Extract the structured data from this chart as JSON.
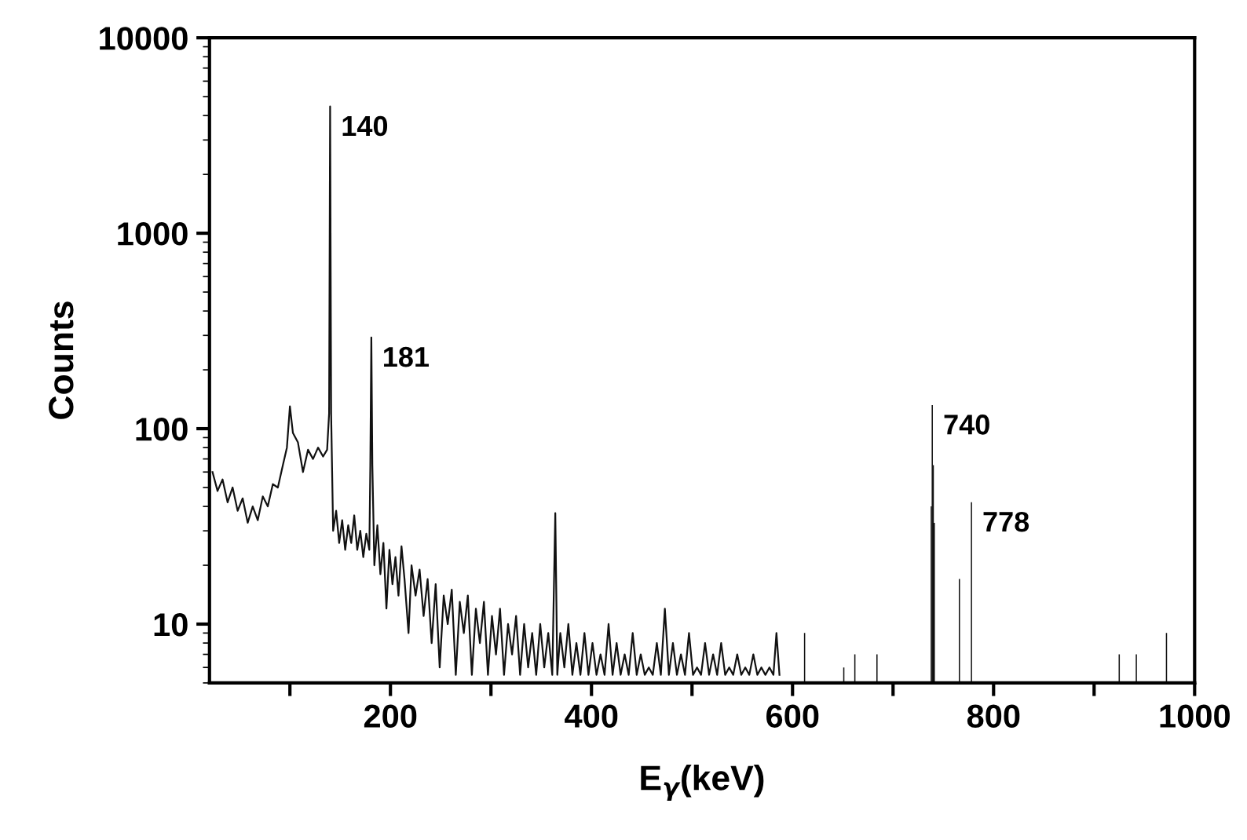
{
  "chart_data": {
    "type": "line",
    "xlabel": "E$_{γ}$(keV)",
    "ylabel": "Counts",
    "log": "y",
    "grid": false,
    "marker": "none",
    "line_style": "solid",
    "xlim": [
      20,
      1000
    ],
    "ylim": [
      5,
      10000
    ],
    "xticks": [
      {
        "value": 100,
        "label": null
      },
      200,
      {
        "value": 300,
        "label": null
      },
      400,
      {
        "value": 500,
        "label": null
      },
      600,
      {
        "value": 700,
        "label": null
      },
      800,
      {
        "value": 900,
        "label": null
      },
      1000
    ],
    "yticks": [
      10,
      100,
      1000,
      10000
    ],
    "series": [
      {
        "color": "#111111",
        "x": [
          23,
          28,
          33,
          38,
          43,
          48,
          53,
          58,
          63,
          68,
          73,
          78,
          83,
          88,
          93,
          97,
          100,
          103,
          108,
          113,
          118,
          123,
          128,
          133,
          137,
          139,
          140,
          141,
          143,
          146,
          149,
          152,
          155,
          158,
          161,
          164,
          167,
          170,
          173,
          176,
          179,
          180,
          181,
          182,
          184,
          187,
          190,
          193,
          196,
          199,
          202,
          205,
          208,
          211,
          214,
          218,
          221,
          225,
          229,
          233,
          237,
          241,
          245,
          249,
          253,
          257,
          261,
          265,
          269,
          273,
          277,
          281,
          285,
          289,
          293,
          297,
          301,
          305,
          309,
          313,
          317,
          321,
          325,
          329,
          333,
          337,
          341,
          345,
          349,
          353,
          357,
          361,
          364,
          366,
          369,
          373,
          377,
          381,
          385,
          389,
          393,
          397,
          401,
          405,
          409,
          413,
          417,
          421,
          425,
          429,
          433,
          437,
          441,
          445,
          449,
          453,
          457,
          461,
          465,
          469,
          473,
          477,
          481,
          485,
          489,
          493,
          497,
          501,
          505,
          509,
          513,
          517,
          521,
          525,
          529,
          533,
          537,
          541,
          545,
          549,
          553,
          557,
          561,
          565,
          569,
          573,
          577,
          581,
          584,
          587
        ],
        "values": [
          60,
          48,
          55,
          42,
          50,
          38,
          44,
          33,
          40,
          34,
          45,
          40,
          52,
          50,
          65,
          80,
          130,
          95,
          85,
          60,
          78,
          70,
          80,
          72,
          78,
          120,
          4450,
          120,
          30,
          38,
          26,
          34,
          24,
          32,
          26,
          36,
          24,
          30,
          22,
          29,
          24,
          65,
          293,
          65,
          20,
          32,
          18,
          26,
          12,
          24,
          16,
          22,
          14,
          25,
          17,
          9,
          20,
          14,
          19,
          11,
          17,
          8,
          16,
          6,
          14,
          10,
          15,
          5.5,
          13,
          9,
          14,
          5.5,
          12,
          8,
          13,
          5.5,
          11,
          7,
          12,
          5.5,
          10,
          7,
          11,
          5.5,
          10,
          6,
          9,
          5.5,
          10,
          6,
          9,
          5.5,
          37,
          5.5,
          9,
          6,
          10,
          5.5,
          8,
          5.5,
          9,
          5.5,
          8,
          5.5,
          7,
          5.5,
          10,
          5.5,
          8,
          5.5,
          7,
          5.5,
          9,
          5.5,
          7,
          5.5,
          6,
          5.5,
          8,
          5.5,
          12,
          5.5,
          8,
          5.5,
          7,
          5.5,
          9,
          5.5,
          6,
          5.5,
          8,
          5.5,
          7,
          5.5,
          8,
          5.5,
          6,
          5.5,
          7,
          5.5,
          6,
          5.5,
          7,
          5.5,
          6,
          5.5,
          6,
          5.5,
          9,
          5.5
        ]
      },
      {
        "color": "#111111",
        "type": "bar",
        "x": [
          612,
          651,
          662,
          684,
          738,
          739,
          740,
          741,
          766,
          778,
          925,
          942,
          972
        ],
        "values": [
          9,
          6,
          7,
          7,
          40,
          132,
          65,
          33,
          17,
          42,
          7,
          7,
          9
        ]
      }
    ],
    "annotations": [
      {
        "text": "140",
        "x": 140,
        "y": 4450
      },
      {
        "text": "181",
        "x": 181,
        "y": 293
      },
      {
        "text": "740",
        "x": 739,
        "y": 132
      },
      {
        "text": "778",
        "x": 778,
        "y": 42
      }
    ]
  }
}
